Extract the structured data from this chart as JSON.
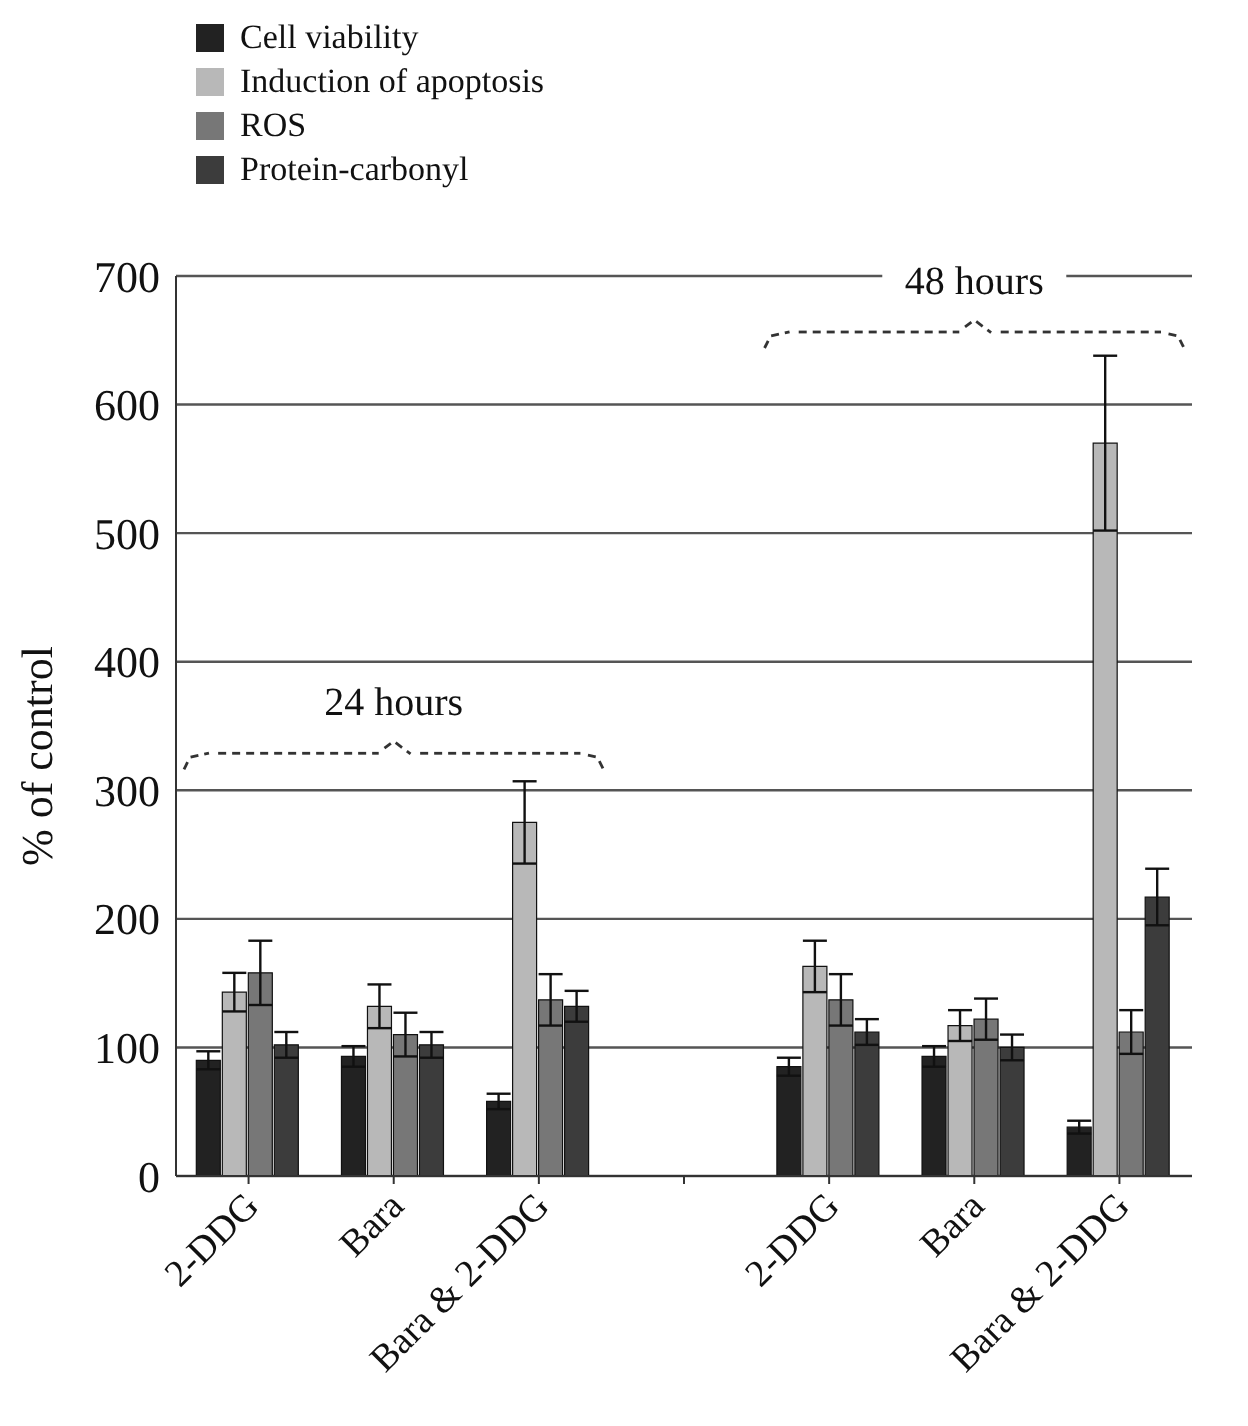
{
  "chart_data": {
    "type": "bar",
    "ylabel": "% of control",
    "categories": [
      "2-DDG",
      "Bara",
      "Bara & 2-DDG",
      null,
      "2-DDG",
      "Bara",
      "Bara & 2-DDG"
    ],
    "series": [
      {
        "name": "Cell viability",
        "color": "#222222",
        "values": [
          90,
          93,
          58,
          null,
          85,
          93,
          38
        ],
        "errors": [
          7,
          8,
          6,
          null,
          7,
          8,
          5
        ]
      },
      {
        "name": "Induction of apoptosis",
        "color": "#b8b8b8",
        "values": [
          143,
          132,
          275,
          null,
          163,
          117,
          570
        ],
        "errors": [
          15,
          17,
          32,
          null,
          20,
          12,
          68
        ]
      },
      {
        "name": "ROS",
        "color": "#777777",
        "values": [
          158,
          110,
          137,
          null,
          137,
          122,
          112
        ],
        "errors": [
          25,
          17,
          20,
          null,
          20,
          16,
          17
        ]
      },
      {
        "name": "Protein-carbonyl",
        "color": "#3c3c3c",
        "values": [
          102,
          102,
          132,
          null,
          112,
          100,
          217
        ],
        "errors": [
          10,
          10,
          12,
          null,
          10,
          10,
          22
        ]
      }
    ],
    "ylim": [
      0,
      700
    ],
    "yticks": [
      0,
      100,
      200,
      300,
      400,
      500,
      600,
      700
    ],
    "grid": "y",
    "legend": "top left",
    "annotations": [
      "24 hours",
      "48 hours"
    ]
  }
}
